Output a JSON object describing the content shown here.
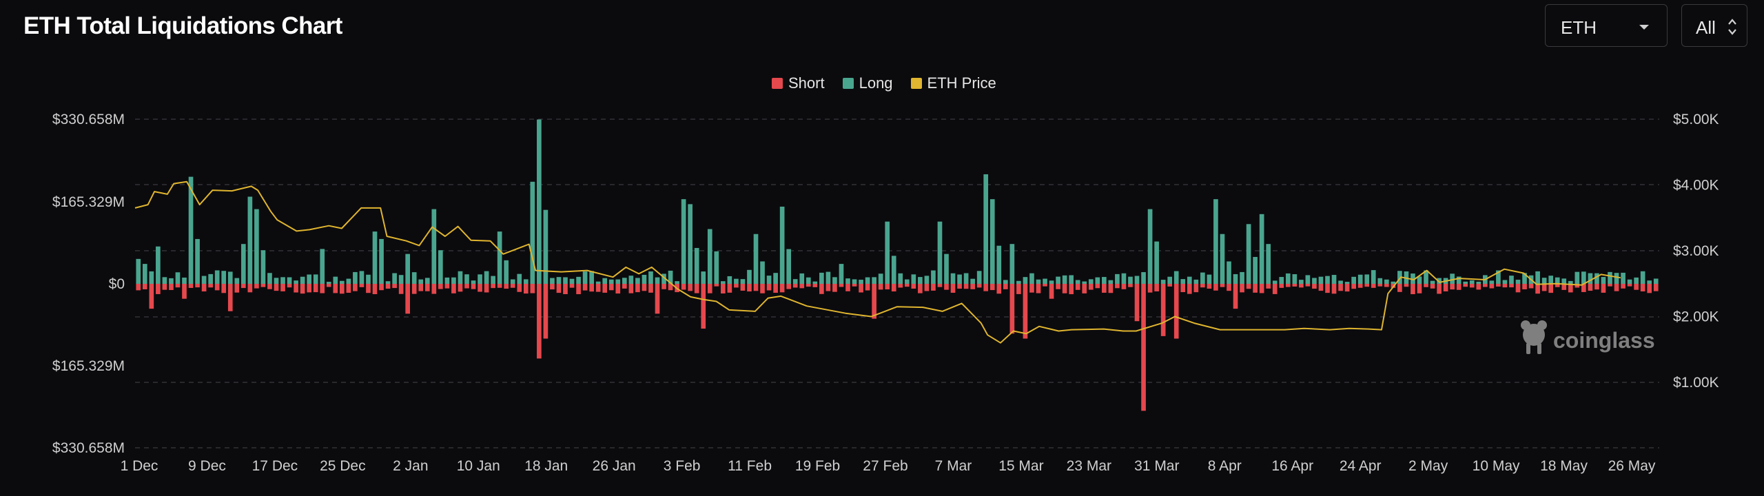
{
  "page": {
    "title": "ETH Total Liquidations Chart",
    "coin_select": "ETH",
    "range_select": "All",
    "watermark": "coinglass"
  },
  "colors": {
    "short": "#e5484d",
    "long": "#4aa58f",
    "price": "#e0b52f",
    "grid": "#3a3a40"
  },
  "chart_data": {
    "type": "bar",
    "legend": [
      {
        "name": "Short",
        "color": "#e5484d"
      },
      {
        "name": "Long",
        "color": "#4aa58f"
      },
      {
        "name": "ETH Price",
        "color": "#e0b52f"
      }
    ],
    "left_axis": {
      "ticks": [
        "$330.658M",
        "$165.329M",
        "$0",
        "$165.329M",
        "$330.658M"
      ],
      "values": [
        330.658,
        165.329,
        0,
        -165.329,
        -330.658
      ],
      "unit": "M"
    },
    "right_axis": {
      "ticks": [
        "$5.00K",
        "$4.00K",
        "$3.00K",
        "$2.00K",
        "$1.00K"
      ],
      "values": [
        5000,
        4000,
        3000,
        2000,
        1000
      ]
    },
    "x_ticks": [
      "1 Dec",
      "9 Dec",
      "17 Dec",
      "25 Dec",
      "2 Jan",
      "10 Jan",
      "18 Jan",
      "26 Jan",
      "3 Feb",
      "11 Feb",
      "19 Feb",
      "27 Feb",
      "7 Mar",
      "15 Mar",
      "23 Mar",
      "31 Mar",
      "8 Apr",
      "16 Apr",
      "24 Apr",
      "2 May",
      "10 May",
      "18 May",
      "26 May"
    ],
    "long_peaks": [
      [
        0,
        50
      ],
      [
        1,
        40
      ],
      [
        2,
        25
      ],
      [
        3,
        75
      ],
      [
        8,
        215
      ],
      [
        9,
        90
      ],
      [
        16,
        80
      ],
      [
        17,
        175
      ],
      [
        18,
        150
      ],
      [
        28,
        70
      ],
      [
        37,
        105
      ],
      [
        38,
        90
      ],
      [
        42,
        60
      ],
      [
        46,
        150
      ],
      [
        56,
        105
      ],
      [
        61,
        205
      ],
      [
        62,
        330
      ],
      [
        84,
        170
      ],
      [
        85,
        160
      ],
      [
        88,
        145
      ],
      [
        89,
        110
      ],
      [
        96,
        100
      ],
      [
        100,
        155
      ],
      [
        109,
        40
      ],
      [
        116,
        125
      ],
      [
        124,
        125
      ],
      [
        125,
        60
      ],
      [
        131,
        220
      ],
      [
        132,
        170
      ],
      [
        135,
        80
      ],
      [
        157,
        150
      ],
      [
        158,
        85
      ],
      [
        167,
        170
      ],
      [
        168,
        100
      ],
      [
        172,
        120
      ],
      [
        174,
        140
      ],
      [
        175,
        80
      ]
    ],
    "short_peaks": [
      [
        2,
        50
      ],
      [
        7,
        30
      ],
      [
        14,
        55
      ],
      [
        42,
        60
      ],
      [
        62,
        150
      ],
      [
        63,
        110
      ],
      [
        80,
        60
      ],
      [
        87,
        90
      ],
      [
        114,
        70
      ],
      [
        135,
        100
      ],
      [
        137,
        110
      ],
      [
        141,
        30
      ],
      [
        155,
        75
      ],
      [
        156,
        255
      ],
      [
        159,
        105
      ],
      [
        161,
        110
      ],
      [
        170,
        50
      ]
    ],
    "price_points": [
      [
        0,
        3650
      ],
      [
        2,
        3700
      ],
      [
        3,
        3900
      ],
      [
        5,
        3860
      ],
      [
        6,
        4020
      ],
      [
        8,
        4050
      ],
      [
        10,
        3700
      ],
      [
        12,
        3920
      ],
      [
        15,
        3910
      ],
      [
        18,
        3980
      ],
      [
        19,
        3920
      ],
      [
        21,
        3600
      ],
      [
        22,
        3470
      ],
      [
        25,
        3300
      ],
      [
        27,
        3320
      ],
      [
        30,
        3380
      ],
      [
        32,
        3340
      ],
      [
        35,
        3650
      ],
      [
        38,
        3650
      ],
      [
        39,
        3220
      ],
      [
        42,
        3150
      ],
      [
        44,
        3080
      ],
      [
        46,
        3360
      ],
      [
        48,
        3220
      ],
      [
        50,
        3370
      ],
      [
        52,
        3160
      ],
      [
        55,
        3150
      ],
      [
        57,
        2950
      ],
      [
        61,
        3100
      ],
      [
        62,
        2700
      ],
      [
        66,
        2680
      ],
      [
        70,
        2700
      ],
      [
        74,
        2600
      ],
      [
        76,
        2750
      ],
      [
        78,
        2650
      ],
      [
        80,
        2750
      ],
      [
        84,
        2420
      ],
      [
        86,
        2300
      ],
      [
        88,
        2260
      ],
      [
        90,
        2230
      ],
      [
        92,
        2100
      ],
      [
        96,
        2080
      ],
      [
        98,
        2280
      ],
      [
        100,
        2310
      ],
      [
        104,
        2160
      ],
      [
        110,
        2050
      ],
      [
        114,
        2000
      ],
      [
        118,
        2150
      ],
      [
        122,
        2140
      ],
      [
        125,
        2080
      ],
      [
        128,
        2200
      ],
      [
        131,
        1900
      ],
      [
        132,
        1720
      ],
      [
        134,
        1600
      ],
      [
        136,
        1780
      ],
      [
        138,
        1740
      ],
      [
        140,
        1850
      ],
      [
        143,
        1780
      ],
      [
        145,
        1800
      ],
      [
        150,
        1810
      ],
      [
        153,
        1780
      ],
      [
        155,
        1780
      ],
      [
        159,
        1900
      ],
      [
        161,
        2000
      ],
      [
        164,
        1900
      ],
      [
        168,
        1800
      ],
      [
        172,
        1800
      ],
      [
        175,
        1800
      ],
      [
        178,
        1800
      ],
      [
        181,
        1820
      ],
      [
        185,
        1800
      ],
      [
        188,
        1820
      ],
      [
        191,
        1810
      ],
      [
        193,
        1800
      ],
      [
        194,
        2350
      ],
      [
        196,
        2600
      ],
      [
        198,
        2560
      ],
      [
        200,
        2700
      ],
      [
        202,
        2520
      ],
      [
        205,
        2580
      ],
      [
        209,
        2560
      ],
      [
        212,
        2720
      ],
      [
        215,
        2660
      ],
      [
        217,
        2490
      ],
      [
        220,
        2500
      ],
      [
        224,
        2480
      ],
      [
        227,
        2640
      ],
      [
        230,
        2590
      ]
    ]
  }
}
